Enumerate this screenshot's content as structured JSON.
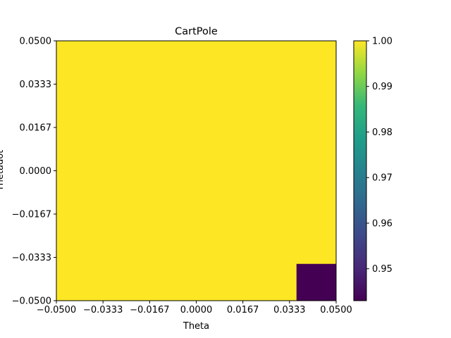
{
  "chart_data": {
    "type": "heatmap",
    "title": "CartPole",
    "xlabel": "Theta",
    "ylabel": "Thetadot",
    "xlim": [
      -0.05,
      0.05
    ],
    "ylim": [
      -0.05,
      0.05
    ],
    "x_ticks": [
      "−0.0500",
      "−0.0333",
      "−0.0167",
      "0.0000",
      "0.0167",
      "0.0333",
      "0.0500"
    ],
    "y_ticks": [
      "−0.0500",
      "−0.0333",
      "−0.0167",
      "0.0000",
      "0.0167",
      "0.0333",
      "0.0500"
    ],
    "grid": {
      "x_edges": [
        -0.05,
        -0.0357,
        -0.0214,
        -0.0071,
        0.0071,
        0.0214,
        0.0357,
        0.05
      ],
      "y_edges": [
        -0.05,
        -0.0357,
        -0.0214,
        -0.0071,
        0.0071,
        0.0214,
        0.0357,
        0.05
      ],
      "values": [
        [
          0.943,
          1.0,
          1.0,
          1.0,
          1.0,
          1.0,
          1.0
        ],
        [
          1.0,
          1.0,
          1.0,
          1.0,
          1.0,
          1.0,
          1.0
        ],
        [
          1.0,
          1.0,
          1.0,
          1.0,
          1.0,
          1.0,
          1.0
        ],
        [
          1.0,
          1.0,
          1.0,
          1.0,
          1.0,
          1.0,
          1.0
        ],
        [
          1.0,
          1.0,
          1.0,
          1.0,
          1.0,
          1.0,
          1.0
        ],
        [
          1.0,
          1.0,
          1.0,
          1.0,
          1.0,
          1.0,
          1.0
        ],
        [
          1.0,
          1.0,
          1.0,
          1.0,
          1.0,
          1.0,
          1.0
        ]
      ],
      "values_layout": "rows are y bins from bottom, columns are x bins from right"
    },
    "colorbar": {
      "colormap": "viridis",
      "range": [
        0.943,
        1.0
      ],
      "ticks": [
        0.95,
        0.96,
        0.97,
        0.98,
        0.99,
        1.0
      ],
      "tick_labels": [
        "0.95",
        "0.96",
        "0.97",
        "0.98",
        "0.99",
        "1.00"
      ]
    }
  }
}
